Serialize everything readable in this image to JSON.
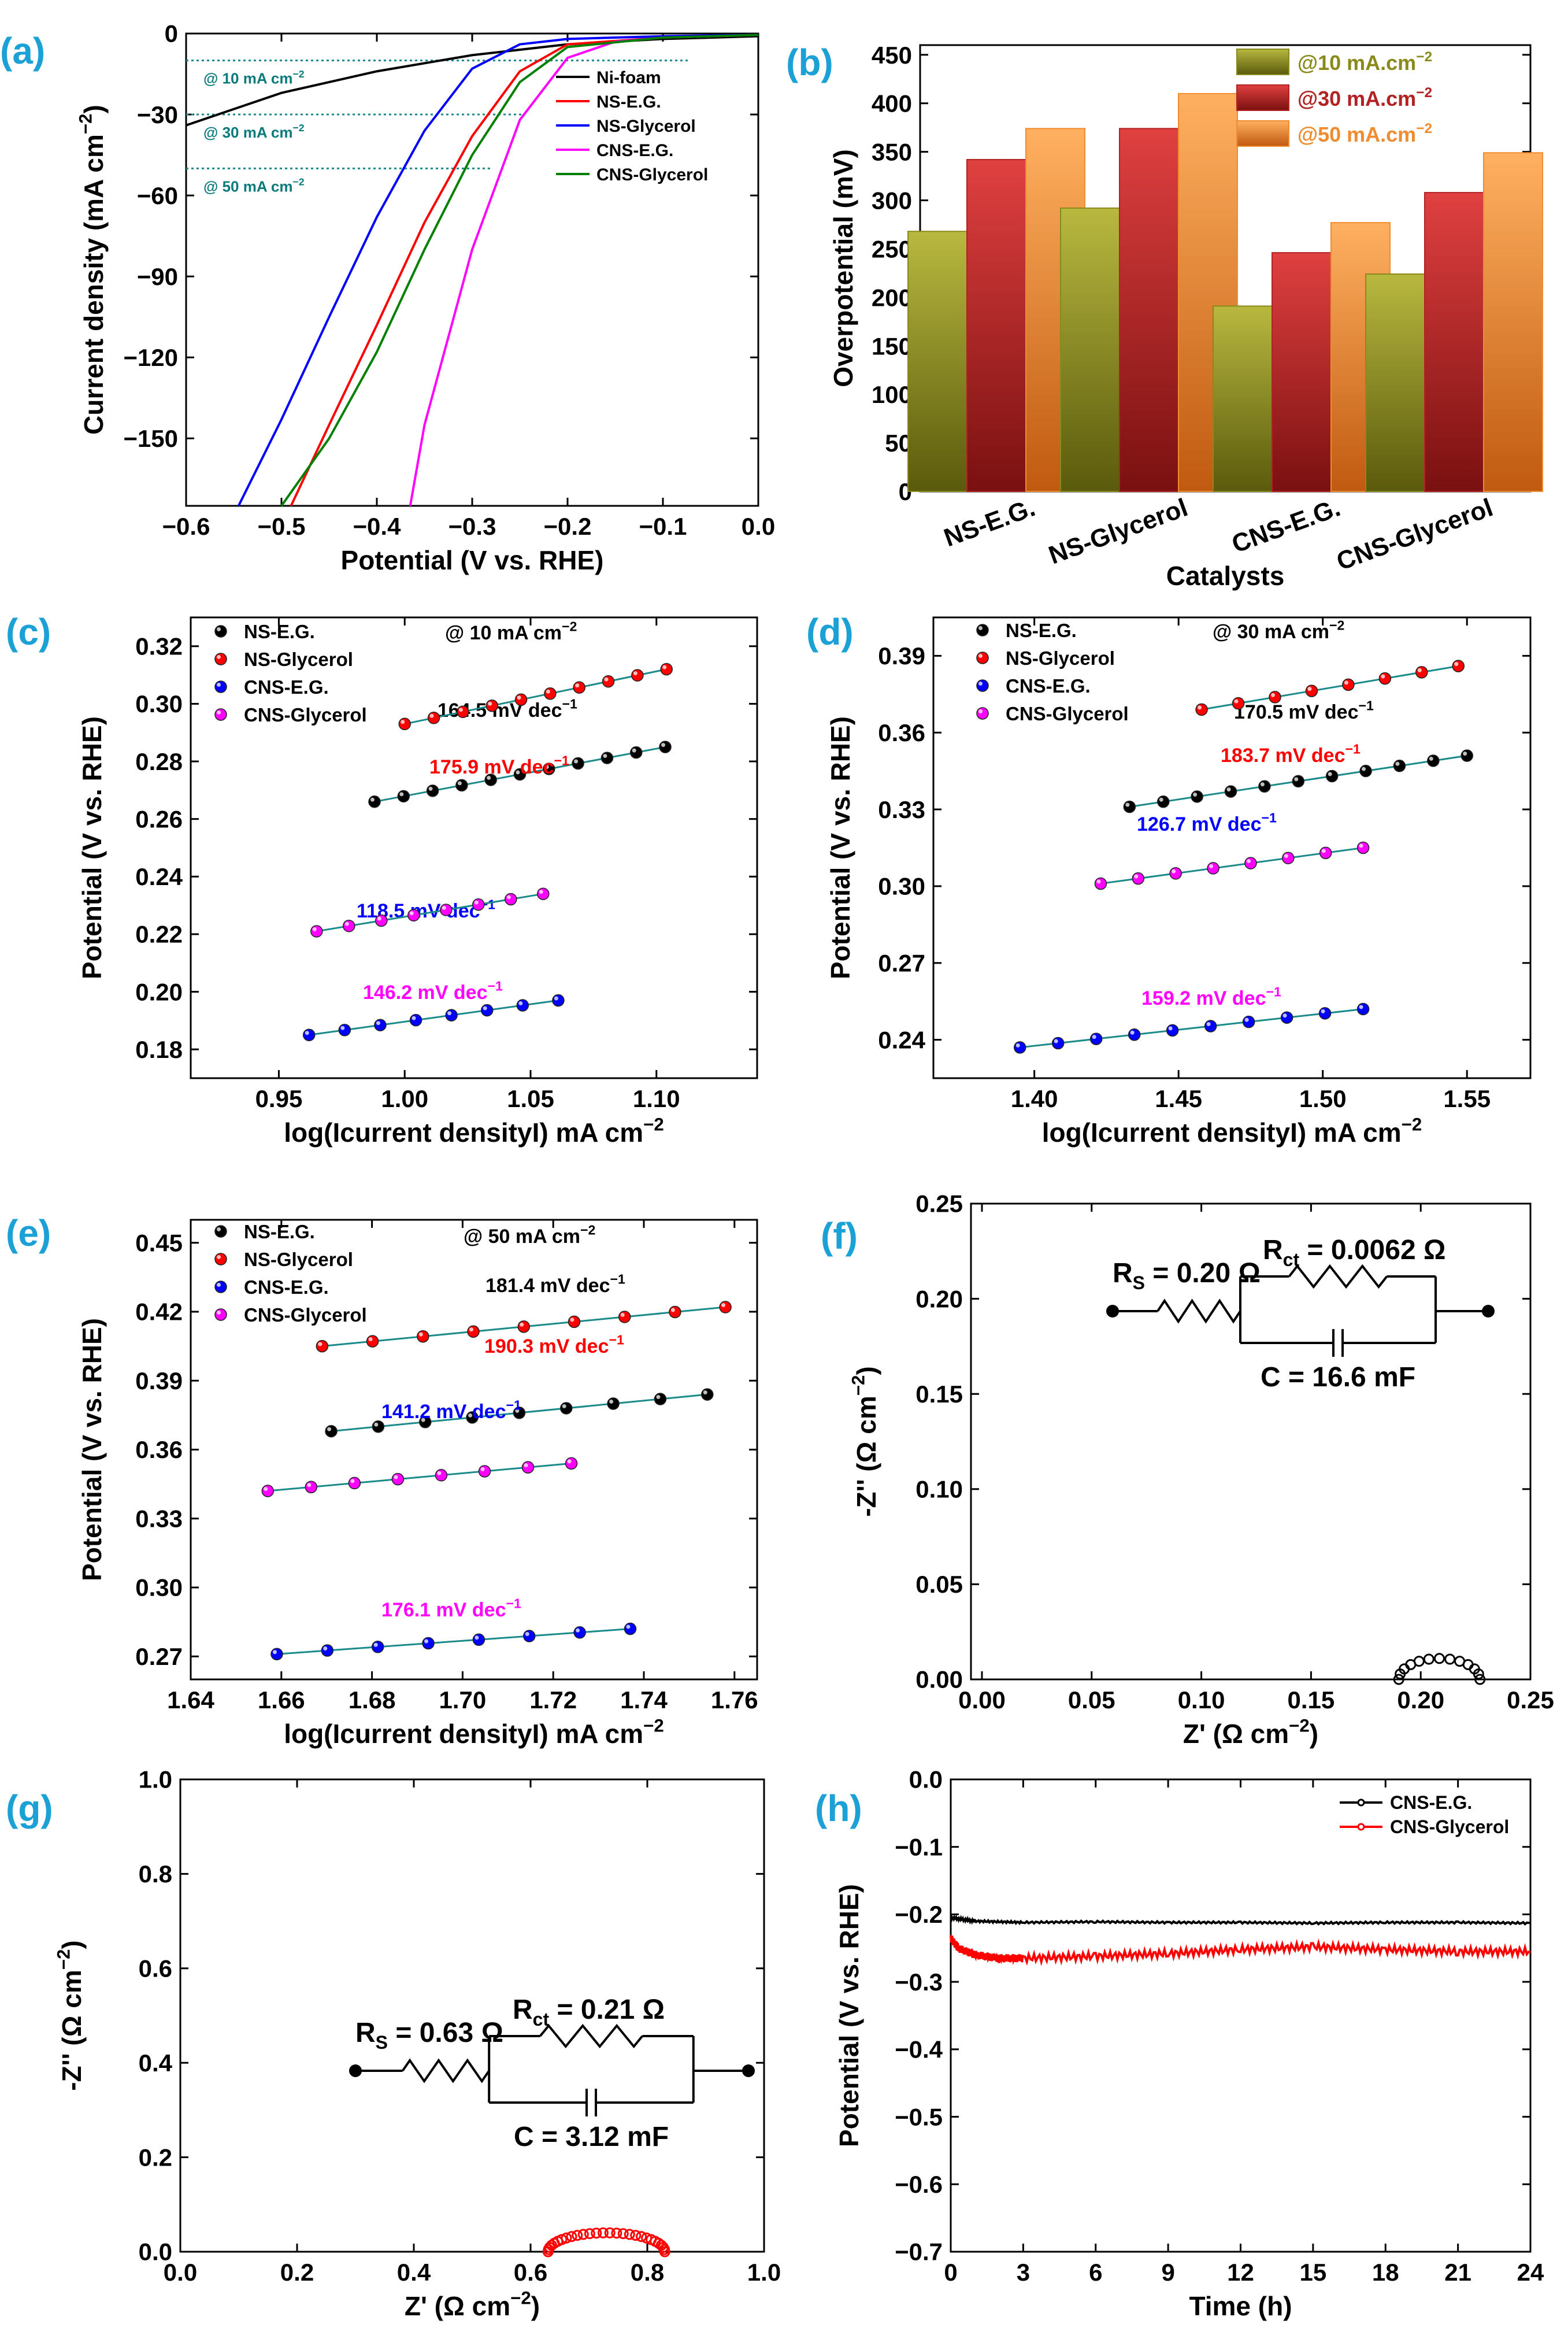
{
  "chart_data": [
    {
      "panel": "(a)",
      "type": "line",
      "xlabel": "Potential (V vs. RHE)",
      "ylabel": "Current density (mA cm⁻²)",
      "xlim": [
        -0.6,
        0.0
      ],
      "ylim": [
        -175,
        0
      ],
      "xticks": [
        -0.6,
        -0.5,
        -0.4,
        -0.3,
        -0.2,
        -0.1,
        0.0
      ],
      "yticks": [
        0,
        -30,
        -60,
        -90,
        -120,
        -150
      ],
      "xtick_labels": [
        "−0.6",
        "−0.5",
        "−0.4",
        "−0.3",
        "−0.2",
        "−0.1",
        "0.0"
      ],
      "ytick_labels": [
        "0",
        "−30",
        "−60",
        "−90",
        "−120",
        "−150"
      ],
      "reference_lines": [
        {
          "y": -10,
          "label": "@ 10 mA cm⁻²"
        },
        {
          "y": -30,
          "label": "@ 30 mA cm⁻²"
        },
        {
          "y": -50,
          "label": "@ 50 mA cm⁻²"
        }
      ],
      "series": [
        {
          "name": "Ni-foam",
          "color": "#000000",
          "x": [
            -0.6,
            -0.5,
            -0.4,
            -0.3,
            -0.2,
            -0.1,
            0.0
          ],
          "y": [
            -34,
            -22,
            -14,
            -8,
            -4,
            -2,
            -1
          ]
        },
        {
          "name": "NS-E.G.",
          "color": "#ff0000",
          "x": [
            -0.49,
            -0.45,
            -0.4,
            -0.35,
            -0.3,
            -0.25,
            -0.2,
            -0.1,
            0.0
          ],
          "y": [
            -175,
            -145,
            -108,
            -70,
            -38,
            -14,
            -4,
            -1.5,
            -0.5
          ]
        },
        {
          "name": "NS-Glycerol",
          "color": "#0000ff",
          "x": [
            -0.545,
            -0.5,
            -0.45,
            -0.4,
            -0.35,
            -0.3,
            -0.25,
            -0.2,
            -0.1,
            0.0
          ],
          "y": [
            -175,
            -143,
            -105,
            -68,
            -36,
            -13,
            -4,
            -2,
            -1,
            -0.5
          ]
        },
        {
          "name": "CNS-E.G.",
          "color": "#ff00ff",
          "x": [
            -0.365,
            -0.35,
            -0.3,
            -0.25,
            -0.2,
            -0.15,
            -0.1,
            0.0
          ],
          "y": [
            -175,
            -145,
            -80,
            -32,
            -9,
            -3,
            -1.5,
            -0.5
          ]
        },
        {
          "name": "CNS-Glycerol",
          "color": "#008000",
          "x": [
            -0.5,
            -0.45,
            -0.4,
            -0.35,
            -0.3,
            -0.25,
            -0.2,
            -0.1,
            0.0
          ],
          "y": [
            -175,
            -150,
            -118,
            -80,
            -45,
            -18,
            -5,
            -1.5,
            -0.5
          ]
        }
      ]
    },
    {
      "panel": "(b)",
      "type": "bar",
      "xlabel": "Catalysts",
      "ylabel": "Overpotential (mV)",
      "ylim": [
        0,
        460
      ],
      "yticks": [
        0,
        50,
        100,
        150,
        200,
        250,
        300,
        350,
        400,
        450
      ],
      "categories": [
        "NS-E.G.",
        "NS-Glycerol",
        "CNS-E.G.",
        "CNS-Glycerol"
      ],
      "series": [
        {
          "name": "@10 mA.cm⁻²",
          "color": "#8a8a1c",
          "values": [
            268,
            292,
            191,
            224
          ]
        },
        {
          "name": "@30 mA.cm⁻²",
          "color": "#b22222",
          "values": [
            342,
            374,
            246,
            308
          ]
        },
        {
          "name": "@50 mA.cm⁻²",
          "color": "#f08c30",
          "values": [
            374,
            410,
            277,
            349
          ]
        }
      ]
    },
    {
      "panel": "(c)",
      "type": "scatter",
      "title": "@ 10 mA cm⁻²",
      "xlabel": "log(Icurrent densityI) mA cm⁻²",
      "ylabel": "Potential (V vs. RHE)",
      "xlim": [
        0.915,
        1.14
      ],
      "ylim": [
        0.17,
        0.33
      ],
      "xticks": [
        0.95,
        1.0,
        1.05,
        1.1
      ],
      "xtick_labels": [
        "0.95",
        "1.00",
        "1.05",
        "1.10"
      ],
      "yticks": [
        0.18,
        0.2,
        0.22,
        0.24,
        0.26,
        0.28,
        0.3,
        0.32
      ],
      "ytick_labels": [
        "0.18",
        "0.20",
        "0.22",
        "0.24",
        "0.26",
        "0.28",
        "0.30",
        "0.32"
      ],
      "series": [
        {
          "name": "NS-E.G.",
          "color": "#000000",
          "slope_label": "164.5 mV dec⁻¹",
          "x": [
            0.988,
            1.1035
          ],
          "y": [
            0.266,
            0.285
          ],
          "n": 11
        },
        {
          "name": "NS-Glycerol",
          "color": "#ff0000",
          "slope_label": "175.9 mV dec⁻¹",
          "x": [
            1.0,
            1.104
          ],
          "y": [
            0.293,
            0.312
          ],
          "n": 10
        },
        {
          "name": "CNS-E.G.",
          "color": "#0000ff",
          "slope_label": "118.5 mV dec⁻¹",
          "x": [
            0.962,
            1.061
          ],
          "y": [
            0.185,
            0.197
          ],
          "n": 8
        },
        {
          "name": "CNS-Glycerol",
          "color": "#ff00ff",
          "slope_label": "146.2 mV dec⁻¹",
          "x": [
            0.965,
            1.055
          ],
          "y": [
            0.221,
            0.234
          ],
          "n": 8
        }
      ]
    },
    {
      "panel": "(d)",
      "type": "scatter",
      "title": "@ 30 mA cm⁻²",
      "xlabel": "log(Icurrent densityI) mA cm⁻²",
      "ylabel": "Potential (V vs. RHE)",
      "xlim": [
        1.365,
        1.572
      ],
      "ylim": [
        0.225,
        0.405
      ],
      "xticks": [
        1.4,
        1.45,
        1.5,
        1.55
      ],
      "xtick_labels": [
        "1.40",
        "1.45",
        "1.50",
        "1.55"
      ],
      "yticks": [
        0.24,
        0.27,
        0.3,
        0.33,
        0.36,
        0.39
      ],
      "ytick_labels": [
        "0.24",
        "0.27",
        "0.30",
        "0.33",
        "0.36",
        "0.39"
      ],
      "series": [
        {
          "name": "NS-E.G.",
          "color": "#000000",
          "slope_label": "170.5 mV dec⁻¹",
          "x": [
            1.433,
            1.55
          ],
          "y": [
            0.331,
            0.351
          ],
          "n": 11
        },
        {
          "name": "NS-Glycerol",
          "color": "#ff0000",
          "slope_label": "183.7 mV dec⁻¹",
          "x": [
            1.458,
            1.547
          ],
          "y": [
            0.369,
            0.386
          ],
          "n": 8
        },
        {
          "name": "CNS-E.G.",
          "color": "#0000ff",
          "slope_label": "126.7 mV dec⁻¹",
          "x": [
            1.395,
            1.514
          ],
          "y": [
            0.237,
            0.252
          ],
          "n": 10
        },
        {
          "name": "CNS-Glycerol",
          "color": "#ff00ff",
          "slope_label": "159.2 mV dec⁻¹",
          "x": [
            1.423,
            1.514
          ],
          "y": [
            0.301,
            0.315
          ],
          "n": 8
        }
      ]
    },
    {
      "panel": "(e)",
      "type": "scatter",
      "title": "@ 50 mA cm⁻²",
      "xlabel": "log(Icurrent densityI) mA cm⁻²",
      "ylabel": "Potential (V vs. RHE)",
      "xlim": [
        1.64,
        1.765
      ],
      "ylim": [
        0.26,
        0.46
      ],
      "xticks": [
        1.64,
        1.66,
        1.68,
        1.7,
        1.72,
        1.74,
        1.76
      ],
      "xtick_labels": [
        "1.64",
        "1.66",
        "1.68",
        "1.70",
        "1.72",
        "1.74",
        "1.76"
      ],
      "yticks": [
        0.27,
        0.3,
        0.33,
        0.36,
        0.39,
        0.42,
        0.45
      ],
      "ytick_labels": [
        "0.27",
        "0.30",
        "0.33",
        "0.36",
        "0.39",
        "0.42",
        "0.45"
      ],
      "series": [
        {
          "name": "NS-E.G.",
          "color": "#000000",
          "slope_label": "181.4 mV dec⁻¹",
          "x": [
            1.671,
            1.754
          ],
          "y": [
            0.368,
            0.384
          ],
          "n": 9
        },
        {
          "name": "NS-Glycerol",
          "color": "#ff0000",
          "slope_label": "190.3 mV dec⁻¹",
          "x": [
            1.669,
            1.758
          ],
          "y": [
            0.405,
            0.422
          ],
          "n": 9
        },
        {
          "name": "CNS-E.G.",
          "color": "#0000ff",
          "slope_label": "141.2 mV dec⁻¹",
          "x": [
            1.659,
            1.737
          ],
          "y": [
            0.271,
            0.282
          ],
          "n": 8
        },
        {
          "name": "CNS-Glycerol",
          "color": "#ff00ff",
          "slope_label": "176.1 mV dec⁻¹",
          "x": [
            1.657,
            1.724
          ],
          "y": [
            0.342,
            0.354
          ],
          "n": 8
        }
      ]
    },
    {
      "panel": "(f)",
      "type": "scatter",
      "xlabel": "Z' (Ω cm⁻²)",
      "ylabel": "-Z'' (Ω cm⁻²)",
      "xlim": [
        -0.005,
        0.25
      ],
      "ylim": [
        0,
        0.25
      ],
      "xticks": [
        0.0,
        0.05,
        0.1,
        0.15,
        0.2,
        0.25
      ],
      "xtick_labels": [
        "0.00",
        "0.05",
        "0.10",
        "0.15",
        "0.20",
        "0.25"
      ],
      "yticks": [
        0.0,
        0.05,
        0.1,
        0.15,
        0.2,
        0.25
      ],
      "ytick_labels": [
        "0.00",
        "0.05",
        "0.10",
        "0.15",
        "0.20",
        "0.25"
      ],
      "circuit": {
        "rs_label": "R",
        "rs_sub": "S",
        "rs_value": " = 0.20 Ω",
        "rct_label": "R",
        "rct_sub": "ct",
        "rct_value": " = 0.0062 Ω",
        "c_label": "C = 16.6 mF"
      },
      "series": [
        {
          "name": "Nyquist",
          "color": "#000000",
          "arc_start": 0.19,
          "arc_end": 0.227,
          "arc_height": 0.011,
          "n": 13
        }
      ]
    },
    {
      "panel": "(g)",
      "type": "scatter",
      "xlabel": "Z' (Ω cm⁻²)",
      "ylabel": "-Z'' (Ω cm⁻²)",
      "xlim": [
        0.0,
        1.0
      ],
      "ylim": [
        0.0,
        1.0
      ],
      "xticks": [
        0.0,
        0.2,
        0.4,
        0.6,
        0.8,
        1.0
      ],
      "xtick_labels": [
        "0.0",
        "0.2",
        "0.4",
        "0.6",
        "0.8",
        "1.0"
      ],
      "yticks": [
        0.0,
        0.2,
        0.4,
        0.6,
        0.8,
        1.0
      ],
      "ytick_labels": [
        "0.0",
        "0.2",
        "0.4",
        "0.6",
        "0.8",
        "1.0"
      ],
      "circuit": {
        "rs_label": "R",
        "rs_sub": "S",
        "rs_value": " = 0.63 Ω",
        "rct_label": "R",
        "rct_sub": "ct",
        "rct_value": " = 0.21 Ω",
        "c_label": "C = 3.12 mF"
      },
      "series": [
        {
          "name": "Nyquist",
          "color": "#ff0000",
          "arc_start": 0.63,
          "arc_end": 0.83,
          "arc_height": 0.04,
          "n": 28
        }
      ]
    },
    {
      "panel": "(h)",
      "type": "line",
      "xlabel": "Time (h)",
      "ylabel": "Potential (V vs. RHE)",
      "xlim": [
        0,
        24
      ],
      "ylim": [
        -0.7,
        0.0
      ],
      "xticks": [
        0,
        3,
        6,
        9,
        12,
        15,
        18,
        21,
        24
      ],
      "xtick_labels": [
        "0",
        "3",
        "6",
        "9",
        "12",
        "15",
        "18",
        "21",
        "24"
      ],
      "yticks": [
        0.0,
        -0.1,
        -0.2,
        -0.3,
        -0.4,
        -0.5,
        -0.6,
        -0.7
      ],
      "ytick_labels": [
        "0.0",
        "−0.1",
        "−0.2",
        "−0.3",
        "−0.4",
        "−0.5",
        "−0.6",
        "−0.7"
      ],
      "series": [
        {
          "name": "CNS-E.G.",
          "color": "#000000",
          "x": [
            0,
            1,
            3,
            6,
            9,
            12,
            15,
            18,
            21,
            24
          ],
          "y": [
            -0.205,
            -0.21,
            -0.212,
            -0.211,
            -0.212,
            -0.212,
            -0.213,
            -0.212,
            -0.212,
            -0.213
          ]
        },
        {
          "name": "CNS-Glycerol",
          "color": "#ff0000",
          "x": [
            0,
            0.3,
            1,
            2,
            3,
            6,
            9,
            12,
            15,
            18,
            21,
            24
          ],
          "y": [
            -0.235,
            -0.25,
            -0.26,
            -0.265,
            -0.265,
            -0.262,
            -0.258,
            -0.252,
            -0.248,
            -0.252,
            -0.255,
            -0.255
          ]
        }
      ]
    }
  ]
}
